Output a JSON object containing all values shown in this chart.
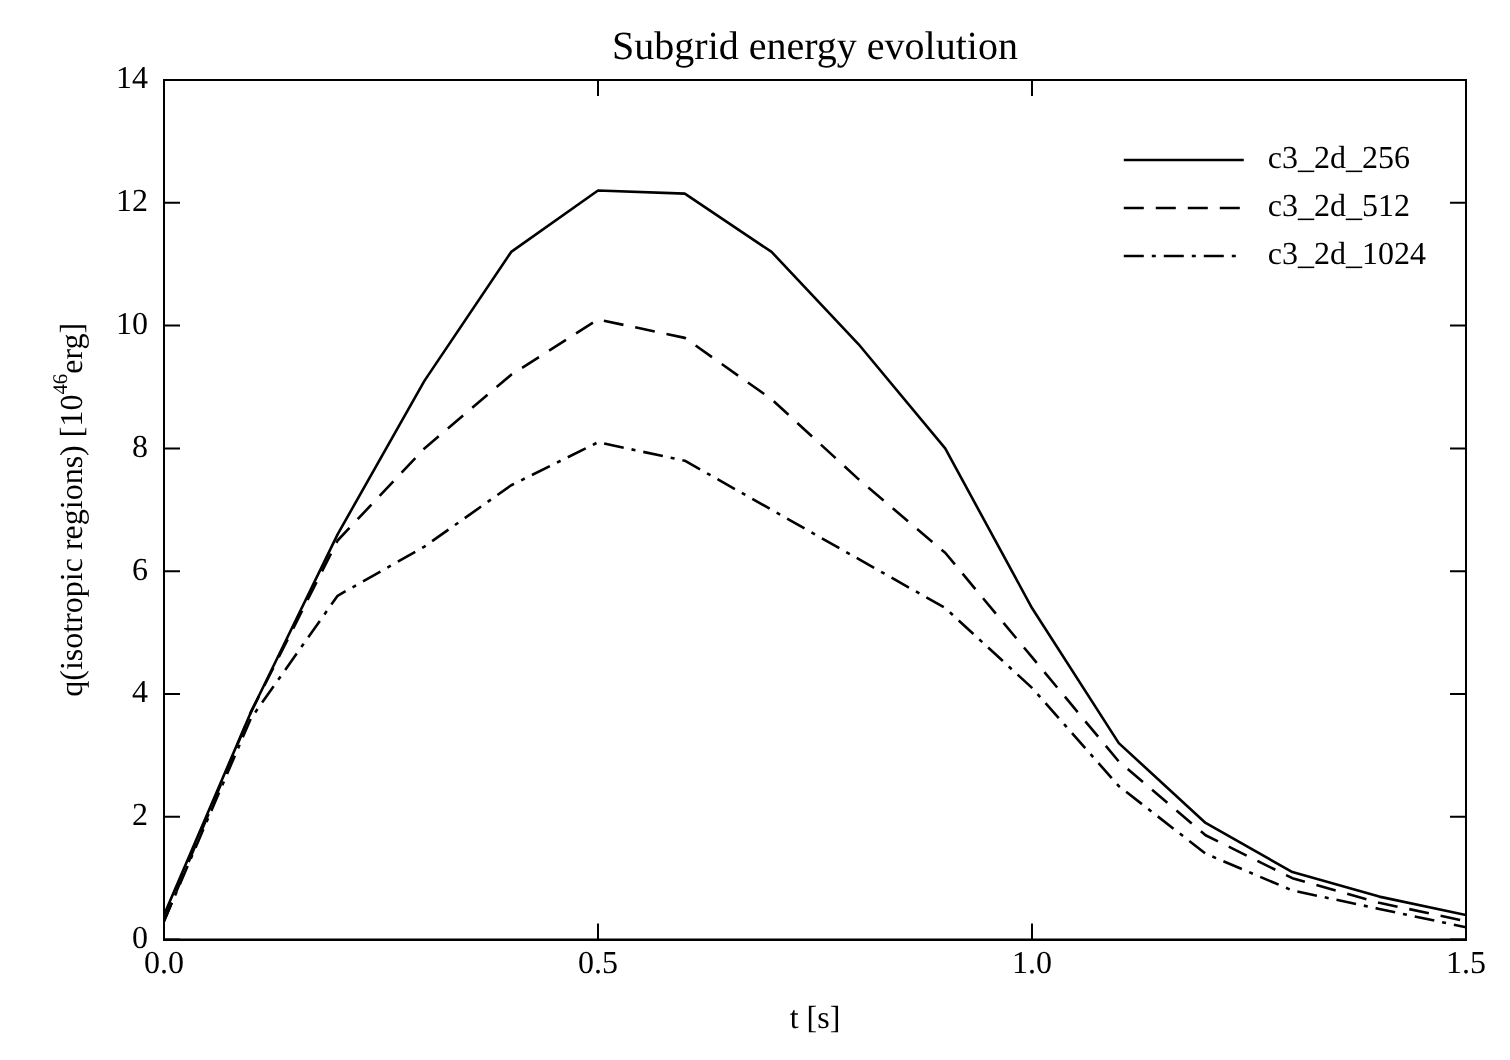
{
  "chart_data": {
    "type": "line",
    "title": "Subgrid energy evolution",
    "xlabel": "t [s]",
    "ylabel": "q(isotropic regions) [10$^{46}$erg]",
    "x": [
      0,
      0.1,
      0.2,
      0.3,
      0.4,
      0.5,
      0.6,
      0.7,
      0.8,
      0.9,
      1.0,
      1.1,
      1.2,
      1.3,
      1.4,
      1.5
    ],
    "series": [
      {
        "name": "c3_2d_256",
        "color": "#000000",
        "line_style": "solid",
        "values": [
          0.4,
          3.7,
          6.6,
          9.1,
          11.2,
          12.2,
          12.15,
          11.2,
          9.7,
          8.0,
          5.4,
          3.2,
          1.9,
          1.1,
          0.7,
          0.4
        ]
      },
      {
        "name": "c3_2d_512",
        "color": "#000000",
        "line_style": "dashed",
        "values": [
          0.3,
          3.7,
          6.5,
          8.0,
          9.2,
          10.1,
          9.8,
          8.8,
          7.5,
          6.3,
          4.6,
          2.9,
          1.7,
          1.0,
          0.6,
          0.3
        ]
      },
      {
        "name": "c3_2d_1024",
        "color": "#000000",
        "line_style": "dashdot",
        "values": [
          0.3,
          3.6,
          5.6,
          6.4,
          7.4,
          8.1,
          7.8,
          7.0,
          6.2,
          5.4,
          4.1,
          2.5,
          1.4,
          0.8,
          0.5,
          0.2
        ]
      }
    ],
    "xlim": [
      0,
      1.5
    ],
    "xticks": [
      {
        "value": 0,
        "label": "0.0"
      },
      {
        "value": 0.5,
        "label": "0.5"
      },
      {
        "value": 1,
        "label": "1.0"
      },
      {
        "value": 1.5,
        "label": "1.5"
      }
    ],
    "ylim": [
      0,
      14
    ],
    "yticks": [
      0,
      2,
      4,
      6,
      8,
      10,
      12,
      14
    ],
    "grid": false,
    "legend": "top right",
    "marker": "none"
  }
}
